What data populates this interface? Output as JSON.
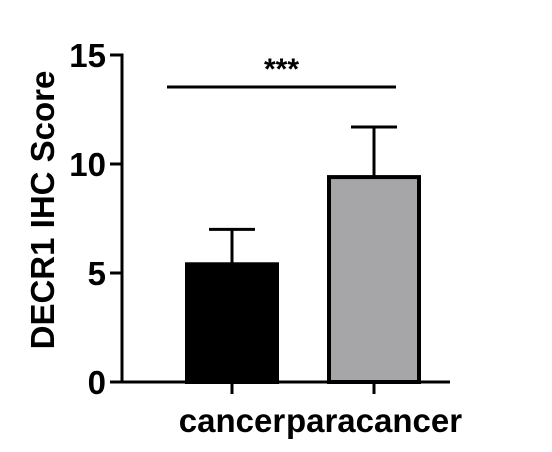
{
  "chart_data": {
    "type": "bar",
    "ylabel": "DECR1 IHC Score",
    "categories": [
      "cancer",
      "paracancer"
    ],
    "values": [
      5.4,
      9.4
    ],
    "error": [
      1.6,
      2.3
    ],
    "ylim": [
      0,
      15
    ],
    "yticks": [
      0,
      5,
      10,
      15
    ],
    "bar_colors": [
      "#000000",
      "#a6a6a8"
    ],
    "significance": {
      "label": "***",
      "between": [
        0,
        1
      ]
    },
    "grid": false,
    "legend": "none"
  }
}
